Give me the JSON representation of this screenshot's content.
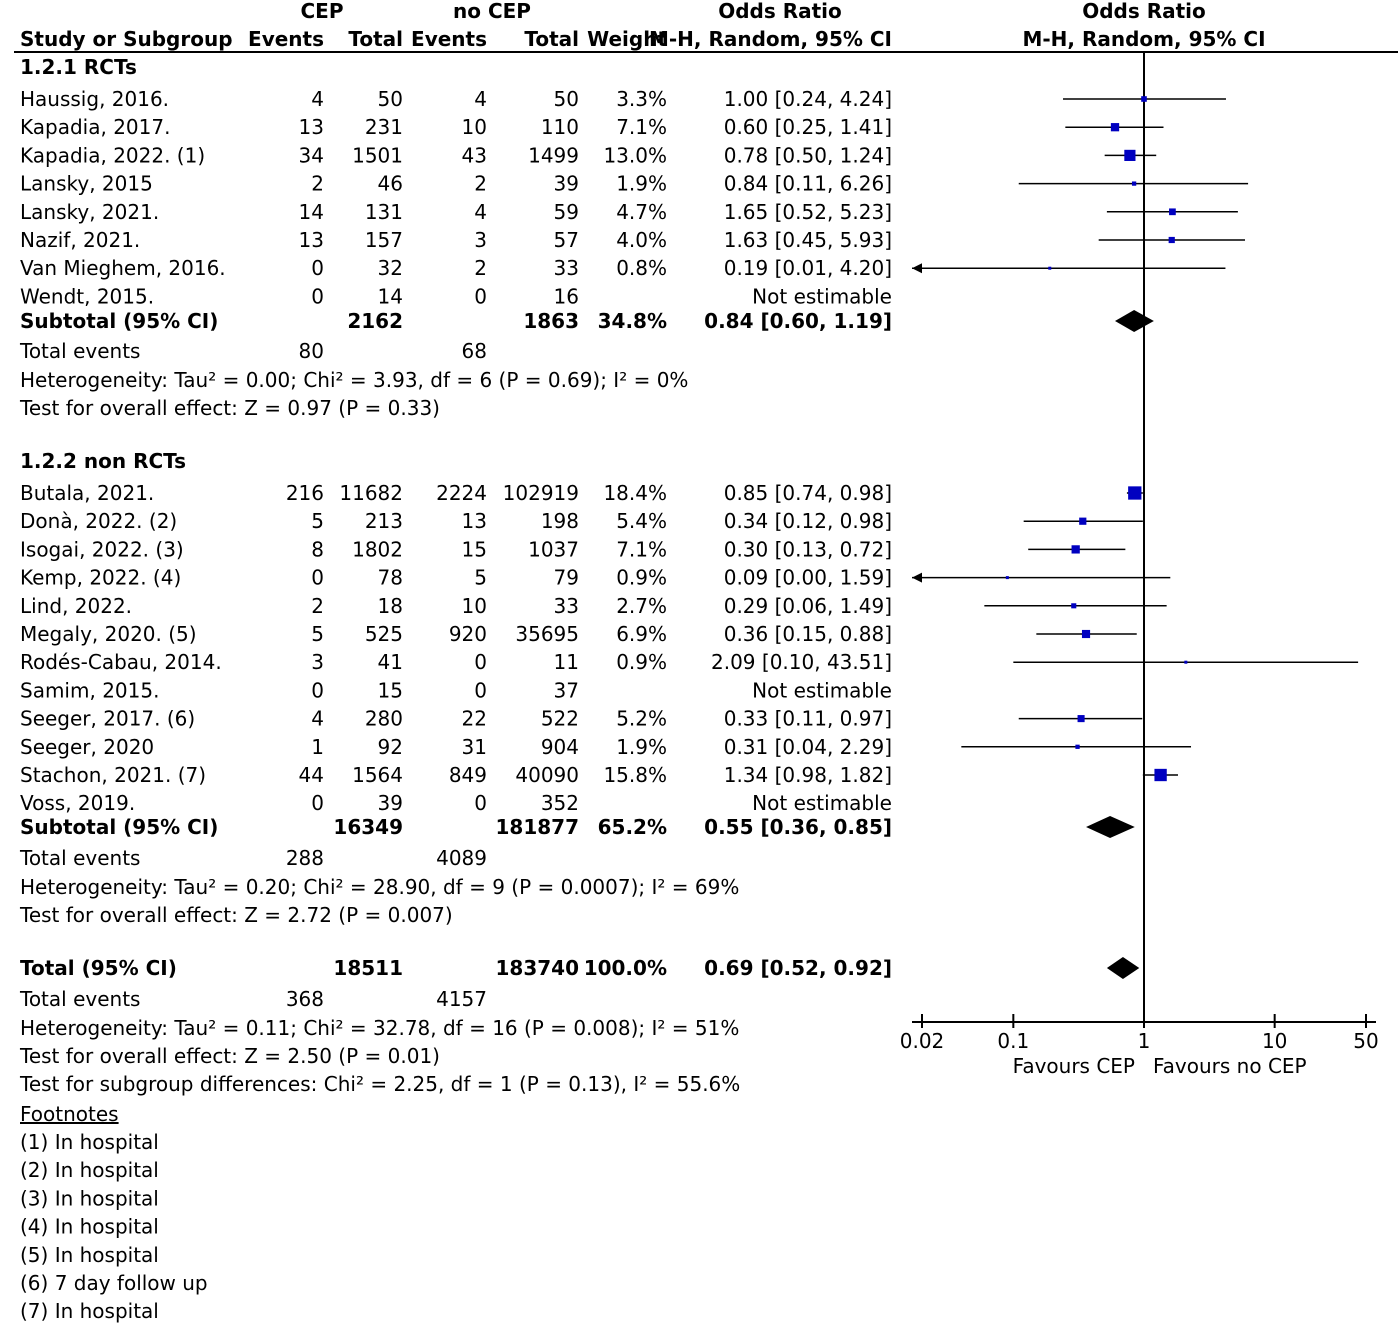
{
  "header": {
    "study_col": "Study or Subgroup",
    "exp_group": "CEP",
    "ctrl_group": "no CEP",
    "events_label": "Events",
    "total_label": "Total",
    "weight_label": "Weight",
    "or_label": "Odds Ratio",
    "method_label": "M-H, Random, 95% CI"
  },
  "subgroups": [
    {
      "title": "1.2.1 RCTs",
      "studies": [
        {
          "study": "Haussig, 2016.",
          "e1": "4",
          "n1": "50",
          "e2": "4",
          "n2": "50",
          "weight": "3.3%",
          "ci_text": "1.00 [0.24, 4.24]"
        },
        {
          "study": "Kapadia, 2017.",
          "e1": "13",
          "n1": "231",
          "e2": "10",
          "n2": "110",
          "weight": "7.1%",
          "ci_text": "0.60 [0.25, 1.41]"
        },
        {
          "study": "Kapadia, 2022. (1)",
          "e1": "34",
          "n1": "1501",
          "e2": "43",
          "n2": "1499",
          "weight": "13.0%",
          "ci_text": "0.78 [0.50, 1.24]"
        },
        {
          "study": "Lansky, 2015",
          "e1": "2",
          "n1": "46",
          "e2": "2",
          "n2": "39",
          "weight": "1.9%",
          "ci_text": "0.84 [0.11, 6.26]"
        },
        {
          "study": "Lansky, 2021.",
          "e1": "14",
          "n1": "131",
          "e2": "4",
          "n2": "59",
          "weight": "4.7%",
          "ci_text": "1.65 [0.52, 5.23]"
        },
        {
          "study": "Nazif, 2021.",
          "e1": "13",
          "n1": "157",
          "e2": "3",
          "n2": "57",
          "weight": "4.0%",
          "ci_text": "1.63 [0.45, 5.93]"
        },
        {
          "study": "Van Mieghem, 2016.",
          "e1": "0",
          "n1": "32",
          "e2": "2",
          "n2": "33",
          "weight": "0.8%",
          "ci_text": "0.19 [0.01, 4.20]"
        },
        {
          "study": "Wendt, 2015.",
          "e1": "0",
          "n1": "14",
          "e2": "0",
          "n2": "16",
          "weight": "",
          "ci_text": "Not estimable"
        }
      ],
      "subtotal": {
        "label": "Subtotal (95% CI)",
        "n1": "2162",
        "n2": "1863",
        "weight": "34.8%",
        "ci_text": "0.84 [0.60, 1.19]"
      },
      "events": {
        "label": "Total events",
        "e1": "80",
        "e2": "68"
      },
      "heterogeneity": "Heterogeneity: Tau² = 0.00; Chi² = 3.93, df = 6 (P = 0.69); I² = 0%",
      "overall": "Test for overall effect: Z = 0.97 (P = 0.33)"
    },
    {
      "title": "1.2.2 non RCTs",
      "studies": [
        {
          "study": "Butala, 2021.",
          "e1": "216",
          "n1": "11682",
          "e2": "2224",
          "n2": "102919",
          "weight": "18.4%",
          "ci_text": "0.85 [0.74, 0.98]"
        },
        {
          "study": "Donà, 2022. (2)",
          "e1": "5",
          "n1": "213",
          "e2": "13",
          "n2": "198",
          "weight": "5.4%",
          "ci_text": "0.34 [0.12, 0.98]"
        },
        {
          "study": "Isogai, 2022. (3)",
          "e1": "8",
          "n1": "1802",
          "e2": "15",
          "n2": "1037",
          "weight": "7.1%",
          "ci_text": "0.30 [0.13, 0.72]"
        },
        {
          "study": "Kemp, 2022. (4)",
          "e1": "0",
          "n1": "78",
          "e2": "5",
          "n2": "79",
          "weight": "0.9%",
          "ci_text": "0.09 [0.00, 1.59]"
        },
        {
          "study": "Lind, 2022.",
          "e1": "2",
          "n1": "18",
          "e2": "10",
          "n2": "33",
          "weight": "2.7%",
          "ci_text": "0.29 [0.06, 1.49]"
        },
        {
          "study": "Megaly, 2020. (5)",
          "e1": "5",
          "n1": "525",
          "e2": "920",
          "n2": "35695",
          "weight": "6.9%",
          "ci_text": "0.36 [0.15, 0.88]"
        },
        {
          "study": "Rodés-Cabau, 2014.",
          "e1": "3",
          "n1": "41",
          "e2": "0",
          "n2": "11",
          "weight": "0.9%",
          "ci_text": "2.09 [0.10, 43.51]"
        },
        {
          "study": "Samim, 2015.",
          "e1": "0",
          "n1": "15",
          "e2": "0",
          "n2": "37",
          "weight": "",
          "ci_text": "Not estimable"
        },
        {
          "study": "Seeger, 2017. (6)",
          "e1": "4",
          "n1": "280",
          "e2": "22",
          "n2": "522",
          "weight": "5.2%",
          "ci_text": "0.33 [0.11, 0.97]"
        },
        {
          "study": "Seeger, 2020",
          "e1": "1",
          "n1": "92",
          "e2": "31",
          "n2": "904",
          "weight": "1.9%",
          "ci_text": "0.31 [0.04, 2.29]"
        },
        {
          "study": "Stachon, 2021. (7)",
          "e1": "44",
          "n1": "1564",
          "e2": "849",
          "n2": "40090",
          "weight": "15.8%",
          "ci_text": "1.34 [0.98, 1.82]"
        },
        {
          "study": "Voss, 2019.",
          "e1": "0",
          "n1": "39",
          "e2": "0",
          "n2": "352",
          "weight": "",
          "ci_text": "Not estimable"
        }
      ],
      "subtotal": {
        "label": "Subtotal (95% CI)",
        "n1": "16349",
        "n2": "181877",
        "weight": "65.2%",
        "ci_text": "0.55 [0.36, 0.85]"
      },
      "events": {
        "label": "Total events",
        "e1": "288",
        "e2": "4089"
      },
      "heterogeneity": "Heterogeneity: Tau² = 0.20; Chi² = 28.90, df = 9 (P = 0.0007); I² = 69%",
      "overall": "Test for overall effect: Z = 2.72 (P = 0.007)"
    }
  ],
  "total": {
    "label": "Total (95% CI)",
    "n1": "18511",
    "n2": "183740",
    "weight": "100.0%",
    "ci_text": "0.69 [0.52, 0.92]",
    "events_label": "Total events",
    "e1": "368",
    "e2": "4157",
    "heterogeneity": "Heterogeneity: Tau² = 0.11; Chi² = 32.78, df = 16 (P = 0.008); I² = 51%",
    "overall": "Test for overall effect: Z = 2.50 (P = 0.01)",
    "subgroup_diff": "Test for subgroup differences: Chi² = 2.25, df = 1 (P = 0.13), I² = 55.6%"
  },
  "footnotes": {
    "title": "Footnotes",
    "items": [
      "(1) In hospital",
      "(2) In hospital",
      "(3) In hospital",
      "(4) In hospital",
      "(5) In hospital",
      "(6) 7 day follow up",
      "(7) In hospital"
    ]
  },
  "axis": {
    "favours_left": "Favours CEP",
    "favours_right": "Favours no CEP"
  },
  "chart_data": {
    "type": "forest",
    "title": "Odds Ratio",
    "subtitle": "M-H, Random, 95% CI",
    "x_scale": "log",
    "xlim": [
      0.02,
      50
    ],
    "xticks": [
      0.02,
      0.1,
      1,
      10,
      50
    ],
    "xtick_labels": [
      "0.02",
      "0.1",
      "1",
      "10",
      "50"
    ],
    "reference_line": 1,
    "point_color": "#0000c0",
    "diamond_color": "#000000",
    "points": [
      {
        "study": "Haussig, 2016.",
        "or": 1.0,
        "lo": 0.24,
        "hi": 4.24,
        "weight": 3.3
      },
      {
        "study": "Kapadia, 2017.",
        "or": 0.6,
        "lo": 0.25,
        "hi": 1.41,
        "weight": 7.1
      },
      {
        "study": "Kapadia, 2022. (1)",
        "or": 0.78,
        "lo": 0.5,
        "hi": 1.24,
        "weight": 13.0
      },
      {
        "study": "Lansky, 2015",
        "or": 0.84,
        "lo": 0.11,
        "hi": 6.26,
        "weight": 1.9
      },
      {
        "study": "Lansky, 2021.",
        "or": 1.65,
        "lo": 0.52,
        "hi": 5.23,
        "weight": 4.7
      },
      {
        "study": "Nazif, 2021.",
        "or": 1.63,
        "lo": 0.45,
        "hi": 5.93,
        "weight": 4.0
      },
      {
        "study": "Van Mieghem, 2016.",
        "or": 0.19,
        "lo": 0.01,
        "hi": 4.2,
        "weight": 0.8
      },
      {
        "study": "Butala, 2021.",
        "or": 0.85,
        "lo": 0.74,
        "hi": 0.98,
        "weight": 18.4
      },
      {
        "study": "Donà, 2022. (2)",
        "or": 0.34,
        "lo": 0.12,
        "hi": 0.98,
        "weight": 5.4
      },
      {
        "study": "Isogai, 2022. (3)",
        "or": 0.3,
        "lo": 0.13,
        "hi": 0.72,
        "weight": 7.1
      },
      {
        "study": "Kemp, 2022. (4)",
        "or": 0.09,
        "lo": 0.0,
        "hi": 1.59,
        "weight": 0.9
      },
      {
        "study": "Lind, 2022.",
        "or": 0.29,
        "lo": 0.06,
        "hi": 1.49,
        "weight": 2.7
      },
      {
        "study": "Megaly, 2020. (5)",
        "or": 0.36,
        "lo": 0.15,
        "hi": 0.88,
        "weight": 6.9
      },
      {
        "study": "Rodés-Cabau, 2014.",
        "or": 2.09,
        "lo": 0.1,
        "hi": 43.51,
        "weight": 0.9
      },
      {
        "study": "Seeger, 2017. (6)",
        "or": 0.33,
        "lo": 0.11,
        "hi": 0.97,
        "weight": 5.2
      },
      {
        "study": "Seeger, 2020",
        "or": 0.31,
        "lo": 0.04,
        "hi": 2.29,
        "weight": 1.9
      },
      {
        "study": "Stachon, 2021. (7)",
        "or": 1.34,
        "lo": 0.98,
        "hi": 1.82,
        "weight": 15.8
      }
    ],
    "diamonds": [
      {
        "label": "Subtotal (95% CI) 1.2.1 RCTs",
        "or": 0.84,
        "lo": 0.6,
        "hi": 1.19
      },
      {
        "label": "Subtotal (95% CI) 1.2.2 non RCTs",
        "or": 0.55,
        "lo": 0.36,
        "hi": 0.85
      },
      {
        "label": "Total (95% CI)",
        "or": 0.69,
        "lo": 0.52,
        "hi": 0.92
      }
    ]
  }
}
